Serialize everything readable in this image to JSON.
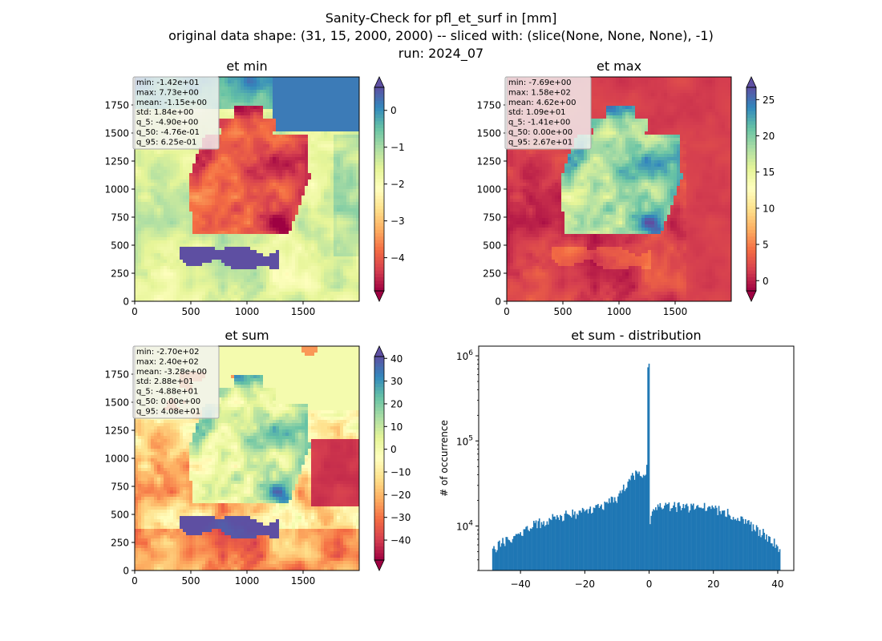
{
  "suptitle": {
    "line1": "Sanity-Check for pfl_et_surf in [mm]",
    "line2": "original data shape: (31, 15, 2000, 2000) -- sliced with: (slice(None, None, None), -1)",
    "line3": "run: 2024_07"
  },
  "colors": {
    "spectral": [
      "#9e0142",
      "#d53e4f",
      "#f46d43",
      "#fdae61",
      "#fee08b",
      "#ffffbf",
      "#e6f598",
      "#abdda4",
      "#66c2a5",
      "#3288bd",
      "#5e4fa2"
    ],
    "hist_bar": "#1f77b4",
    "stats_box_bg": "#f2f2f2",
    "stats_box_border": "#aaaaaa"
  },
  "maps": {
    "x_ticks": [
      "0",
      "500",
      "1000",
      "1500"
    ],
    "y_ticks": [
      "0",
      "250",
      "500",
      "750",
      "1000",
      "1250",
      "1500",
      "1750"
    ],
    "et_min": {
      "title": "et min",
      "stats": [
        "min: -1.42e+01",
        "max: 7.73e+00",
        "mean: -1.15e+00",
        "std: 1.84e+00",
        "q_5: -4.90e+00",
        "q_50: -4.76e-01",
        "q_95: 6.25e-01"
      ],
      "colorbar": {
        "vmin": -4.9,
        "vmax": 0.625,
        "ticks": [
          0,
          -1,
          -2,
          -3,
          -4
        ],
        "tick_labels": [
          "0",
          "−1",
          "−2",
          "−3",
          "−4"
        ],
        "extend": "both"
      }
    },
    "et_max": {
      "title": "et max",
      "stats": [
        "min: -7.69e+00",
        "max: 1.58e+02",
        "mean: 4.62e+00",
        "std: 1.09e+01",
        "q_5: -1.41e+00",
        "q_50: 0.00e+00",
        "q_95: 2.67e+01"
      ],
      "colorbar": {
        "vmin": -1.41,
        "vmax": 26.7,
        "ticks": [
          25,
          20,
          15,
          10,
          5,
          0
        ],
        "tick_labels": [
          "25",
          "20",
          "15",
          "10",
          "5",
          "0"
        ],
        "extend": "both"
      }
    },
    "et_sum": {
      "title": "et sum",
      "stats": [
        "min: -2.70e+02",
        "max: 2.40e+02",
        "mean: -3.28e+00",
        "std: 2.88e+01",
        "q_5: -4.88e+01",
        "q_50: 0.00e+00",
        "q_95: 4.08e+01"
      ],
      "colorbar": {
        "vmin": -48.8,
        "vmax": 40.8,
        "ticks": [
          40,
          30,
          20,
          10,
          0,
          -10,
          -20,
          -30,
          -40
        ],
        "tick_labels": [
          "40",
          "30",
          "20",
          "10",
          "0",
          "−10",
          "−20",
          "−30",
          "−40"
        ],
        "extend": "both"
      }
    }
  },
  "chart_data": [
    {
      "type": "heatmap",
      "title": "et min",
      "xlim": [
        0,
        2000
      ],
      "ylim": [
        0,
        2000
      ],
      "colormap": "Spectral",
      "value_range": [
        -4.9,
        0.625
      ]
    },
    {
      "type": "heatmap",
      "title": "et max",
      "xlim": [
        0,
        2000
      ],
      "ylim": [
        0,
        2000
      ],
      "colormap": "Spectral",
      "value_range": [
        -1.41,
        26.7
      ]
    },
    {
      "type": "heatmap",
      "title": "et sum",
      "xlim": [
        0,
        2000
      ],
      "ylim": [
        0,
        2000
      ],
      "colormap": "Spectral",
      "value_range": [
        -48.8,
        40.8
      ]
    },
    {
      "type": "bar",
      "title": "et sum - distribution",
      "xlabel": "",
      "ylabel": "# of occurrence",
      "xlim": [
        -53,
        45
      ],
      "ylim": [
        3000,
        1300000
      ],
      "yscale": "log",
      "x_ticks": [
        -40,
        -20,
        0,
        20,
        40
      ],
      "x_tick_labels": [
        "−40",
        "−20",
        "0",
        "20",
        "40"
      ],
      "y_ticks": [
        10000,
        100000,
        1000000
      ],
      "y_tick_labels": [
        "10^4",
        "10^5",
        "10^6"
      ],
      "bin_range": [
        -48.8,
        40.8
      ],
      "profile_x": [
        -48.8,
        -45,
        -40,
        -35,
        -30,
        -25,
        -20,
        -15,
        -10,
        -7,
        -5,
        -3,
        -1.5,
        -0.8,
        -0.3,
        0.2,
        0.6,
        1.5,
        3,
        5,
        10,
        15,
        20,
        25,
        30,
        35,
        38,
        40.8
      ],
      "profile_y": [
        5200,
        6600,
        8400,
        10500,
        12500,
        13600,
        14500,
        16600,
        21500,
        30000,
        38000,
        42000,
        40000,
        33000,
        850000,
        9500,
        15000,
        17000,
        17000,
        17000,
        16700,
        16600,
        16100,
        14000,
        11000,
        8400,
        7000,
        5300
      ]
    }
  ]
}
